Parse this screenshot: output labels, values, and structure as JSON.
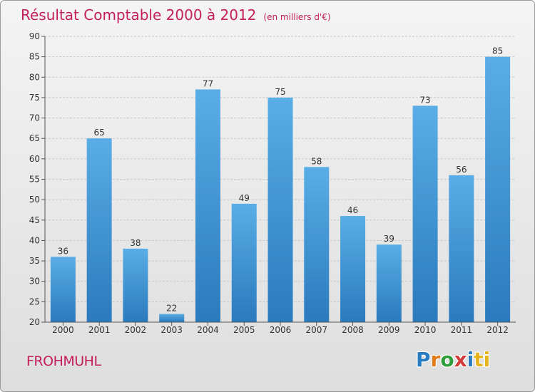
{
  "header": {
    "title": "Résultat Comptable 2000 à 2012",
    "unit": "(en milliers d'€)"
  },
  "footer": {
    "commune": "FROHMUHL",
    "logo": "Proxiti",
    "logo_letters": [
      "P",
      "r",
      "o",
      "x",
      "i",
      "ti"
    ]
  },
  "colors": {
    "title": "#c41e5c",
    "bar_top": "#5aade6",
    "bar_bottom": "#2a7abd"
  },
  "chart_data": {
    "type": "bar",
    "title": "Résultat Comptable 2000 à 2012",
    "subtitle": "(en milliers d'€)",
    "categories": [
      "2000",
      "2001",
      "2002",
      "2003",
      "2004",
      "2005",
      "2006",
      "2007",
      "2008",
      "2009",
      "2010",
      "2011",
      "2012"
    ],
    "values": [
      36,
      65,
      38,
      22,
      77,
      49,
      75,
      58,
      46,
      39,
      73,
      56,
      85
    ],
    "ylim": [
      20,
      90
    ],
    "yticks": [
      20,
      25,
      30,
      35,
      40,
      45,
      50,
      55,
      60,
      65,
      70,
      75,
      80,
      85,
      90
    ],
    "grid": true,
    "data_labels": true
  }
}
